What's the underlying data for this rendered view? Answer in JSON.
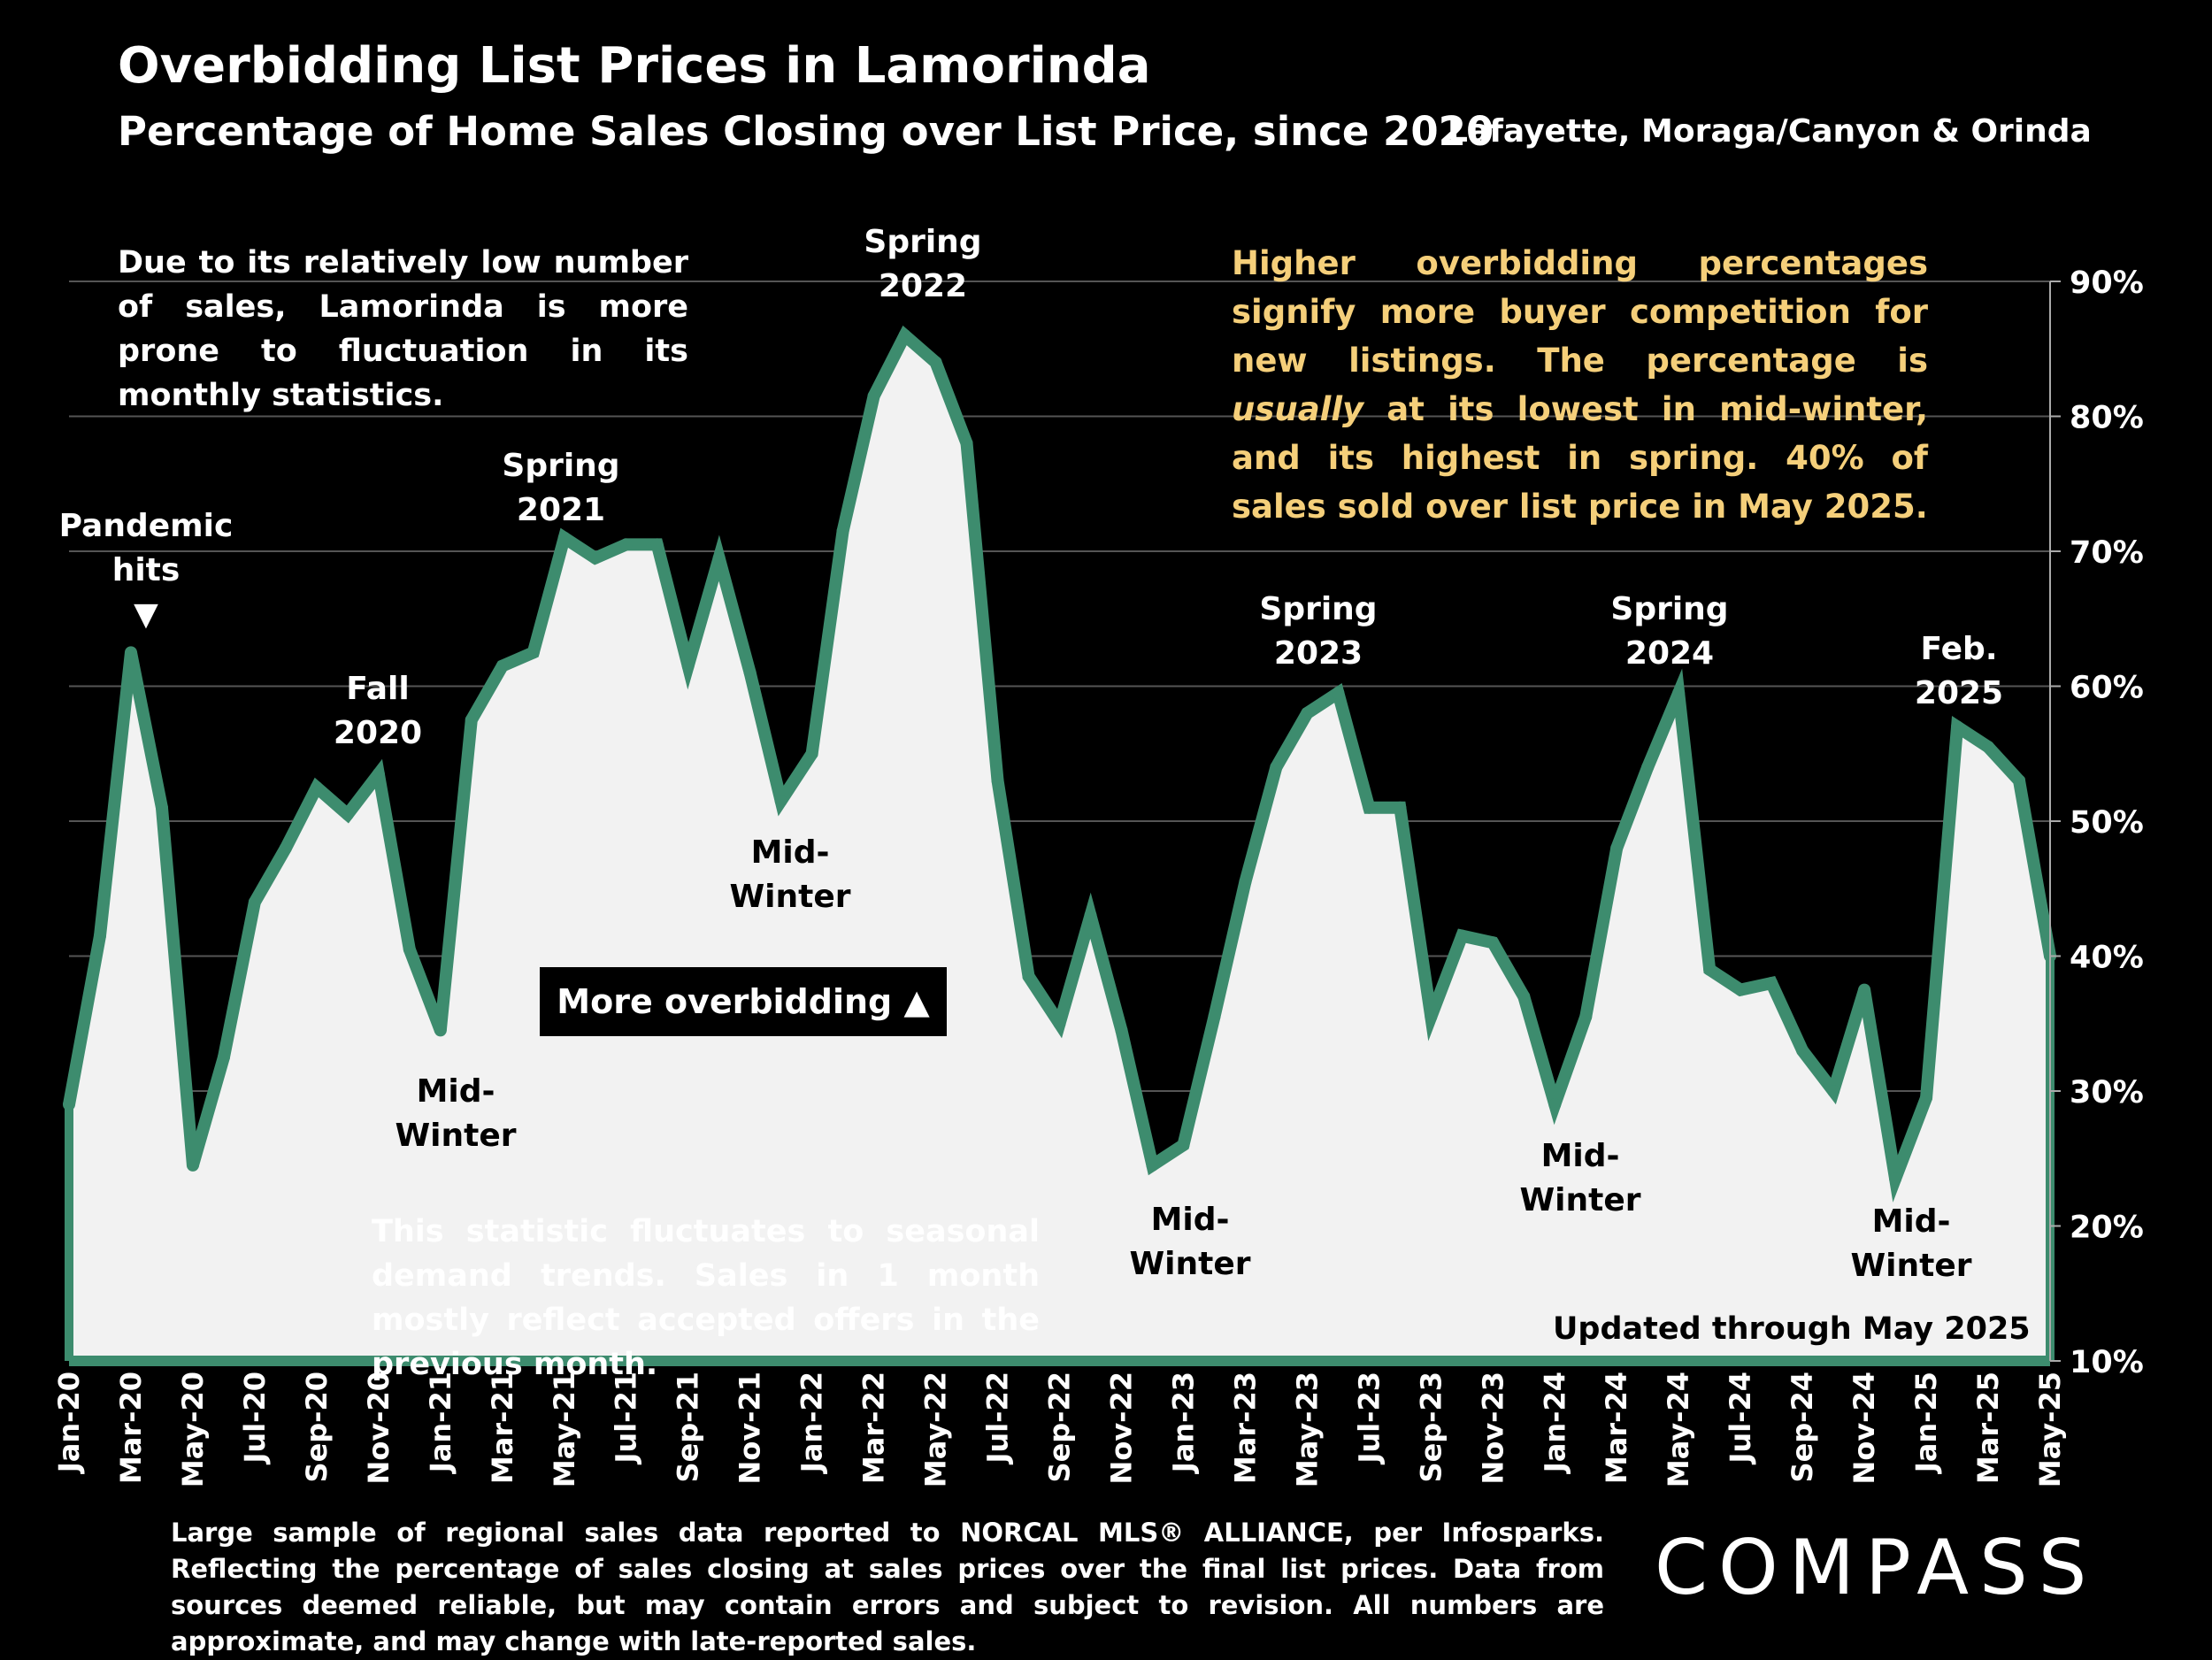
{
  "header": {
    "title": "Overbidding List Prices in Lamorinda",
    "subtitle": "Percentage of Home Sales Closing over List Price, since 2020",
    "region": "Lafayette, Moraga/Canyon & Orinda"
  },
  "notes": {
    "left": "Due to its relatively low number of sales, Lamorinda is more prone to fluctuation in its monthly statistics.",
    "right_part1": "Higher overbidding percentages signify more buyer competition for new listings. The percentage is ",
    "right_italic": "usually",
    "right_part2": " at its lowest in mid-winter, and its highest in spring. 40% of sales sold over list price in May 2025.",
    "bottom": "This statistic fluctuates to seasonal demand trends. Sales in 1 month mostly reflect accepted offers in the previous month.",
    "overbid_box": "More overbidding ▲",
    "updated": "Updated through May 2025"
  },
  "footer": {
    "footnote": "Large sample of regional sales data reported to NORCAL MLS® ALLIANCE, per Infosparks. Reflecting the percentage of sales closing at sales prices over the final list prices. Data from sources deemed reliable, but may contain errors and subject to revision. All numbers are approximate, and may change with late-reported sales.",
    "logo": "COMPASS"
  },
  "chart_data": {
    "type": "area",
    "x": [
      "Jan-20",
      "Feb-20",
      "Mar-20",
      "Apr-20",
      "May-20",
      "Jun-20",
      "Jul-20",
      "Aug-20",
      "Sep-20",
      "Oct-20",
      "Nov-20",
      "Dec-20",
      "Jan-21",
      "Feb-21",
      "Mar-21",
      "Apr-21",
      "May-21",
      "Jun-21",
      "Jul-21",
      "Aug-21",
      "Sep-21",
      "Oct-21",
      "Nov-21",
      "Dec-21",
      "Jan-22",
      "Feb-22",
      "Mar-22",
      "Apr-22",
      "May-22",
      "Jun-22",
      "Jul-22",
      "Aug-22",
      "Sep-22",
      "Oct-22",
      "Nov-22",
      "Dec-22",
      "Jan-23",
      "Feb-23",
      "Mar-23",
      "Apr-23",
      "May-23",
      "Jun-23",
      "Jul-23",
      "Aug-23",
      "Sep-23",
      "Oct-23",
      "Nov-23",
      "Dec-23",
      "Jan-24",
      "Feb-24",
      "Mar-24",
      "Apr-24",
      "May-24",
      "Jun-24",
      "Jul-24",
      "Aug-24",
      "Sep-24",
      "Oct-24",
      "Nov-24",
      "Dec-24",
      "Jan-25",
      "Feb-25",
      "Mar-25",
      "Apr-25",
      "May-25"
    ],
    "values": [
      29,
      41.5,
      62.5,
      51,
      24.5,
      32.5,
      44,
      48,
      52.5,
      50.5,
      53.5,
      40.5,
      34.5,
      57.5,
      61.5,
      62.5,
      71,
      69.5,
      70.5,
      70.5,
      61.5,
      69.5,
      61,
      51.5,
      55,
      71.5,
      81.5,
      86,
      84,
      78,
      53,
      38.5,
      35,
      43,
      34.5,
      24.5,
      26,
      35.5,
      45.5,
      54,
      58,
      59.5,
      51,
      51,
      35.5,
      41.5,
      41,
      37,
      29,
      35.5,
      48,
      54,
      59.5,
      39,
      37.5,
      38,
      33,
      30,
      37.5,
      23.5,
      29.5,
      57,
      55.5,
      53,
      40
    ],
    "x_tick_labels": [
      "Jan-20",
      "Mar-20",
      "May-20",
      "Jul-20",
      "Sep-20",
      "Nov-20",
      "Jan-21",
      "Mar-21",
      "May-21",
      "Jul-21",
      "Sep-21",
      "Nov-21",
      "Jan-22",
      "Mar-22",
      "May-22",
      "Jul-22",
      "Sep-22",
      "Nov-22",
      "Jan-23",
      "Mar-23",
      "May-23",
      "Jul-23",
      "Sep-23",
      "Nov-23",
      "Jan-24",
      "Mar-24",
      "May-24",
      "Jul-24",
      "Sep-24",
      "Nov-24",
      "Jan-25",
      "Mar-25",
      "May-25"
    ],
    "y_ticks": [
      "10%",
      "20%",
      "30%",
      "40%",
      "50%",
      "60%",
      "70%",
      "80%",
      "90%"
    ],
    "ylim": [
      10,
      90
    ],
    "y_axis_side": "right",
    "grid": true,
    "line_color": "#3d8c6e",
    "fill_color": "#f2f2f2",
    "annotations": [
      {
        "text": "Pandemic hits ▼",
        "lines": [
          "Pandemic",
          "hits",
          "▼"
        ],
        "index": 2
      },
      {
        "text": "Fall 2020",
        "lines": [
          "Fall",
          "2020"
        ],
        "index": 10
      },
      {
        "text": "Mid-Winter",
        "lines": [
          "Mid-",
          "Winter"
        ],
        "index": 12
      },
      {
        "text": "Spring 2021",
        "lines": [
          "Spring",
          "2021"
        ],
        "index": 16
      },
      {
        "text": "Mid-Winter",
        "lines": [
          "Mid-",
          "Winter"
        ],
        "index": 23
      },
      {
        "text": "Spring 2022",
        "lines": [
          "Spring",
          "2022"
        ],
        "index": 27
      },
      {
        "text": "Mid-Winter",
        "lines": [
          "Mid-",
          "Winter"
        ],
        "index": 36
      },
      {
        "text": "Spring 2023",
        "lines": [
          "Spring",
          "2023"
        ],
        "index": 41
      },
      {
        "text": "Mid-Winter",
        "lines": [
          "Mid-",
          "Winter"
        ],
        "index": 48
      },
      {
        "text": "Spring 2024",
        "lines": [
          "Spring",
          "2024"
        ],
        "index": 52
      },
      {
        "text": "Feb. 2025",
        "lines": [
          "Feb.",
          "2025"
        ],
        "index": 61
      },
      {
        "text": "Mid-Winter",
        "lines": [
          "Mid-",
          "Winter"
        ],
        "index": 59
      }
    ]
  }
}
